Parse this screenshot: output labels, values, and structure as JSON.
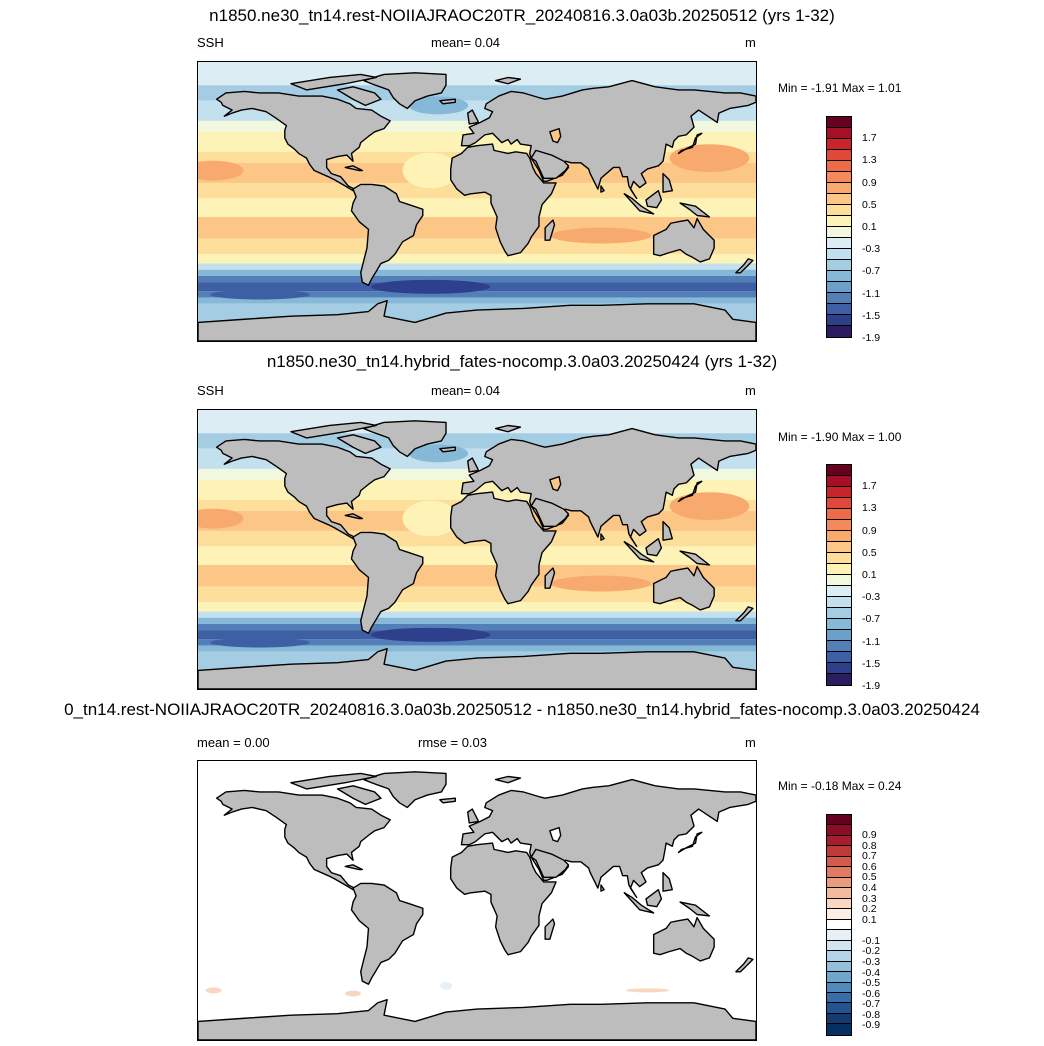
{
  "panels": [
    {
      "title": "n1850.ne30_tn14.rest-NOIIAJRAOC20TR_20240816.3.0a03b.20250512 (yrs 1-32)",
      "left_label": "SSH",
      "center_label": "mean=  0.04",
      "units": "m",
      "minmax": "Min =  -1.91 Max =   1.01",
      "colorbar": {
        "colors": [
          "#67001f",
          "#a50f28",
          "#c8252b",
          "#e0483b",
          "#ee6a4a",
          "#f48a5b",
          "#f8a96e",
          "#fbc686",
          "#fddf9b",
          "#fdf3b6",
          "#f1f8dd",
          "#dcedf3",
          "#c2e0ee",
          "#a4cde3",
          "#86b8d7",
          "#6aa0ca",
          "#537fb9",
          "#3f5fa5",
          "#2e3f8c",
          "#2c1d60"
        ],
        "labels": [
          "1.7",
          "1.3",
          "0.9",
          "0.5",
          "0.1",
          "-0.3",
          "-0.7",
          "-1.1",
          "-1.5",
          "-1.9"
        ]
      },
      "map_style": "full"
    },
    {
      "title": "n1850.ne30_tn14.hybrid_fates-nocomp.3.0a03.20250424 (yrs 1-32)",
      "left_label": "SSH",
      "center_label": "mean=  0.04",
      "units": "m",
      "minmax": "Min =  -1.90 Max =   1.00",
      "colorbar": {
        "colors": [
          "#67001f",
          "#a50f28",
          "#c8252b",
          "#e0483b",
          "#ee6a4a",
          "#f48a5b",
          "#f8a96e",
          "#fbc686",
          "#fddf9b",
          "#fdf3b6",
          "#f1f8dd",
          "#dcedf3",
          "#c2e0ee",
          "#a4cde3",
          "#86b8d7",
          "#6aa0ca",
          "#537fb9",
          "#3f5fa5",
          "#2e3f8c",
          "#2c1d60"
        ],
        "labels": [
          "1.7",
          "1.3",
          "0.9",
          "0.5",
          "0.1",
          "-0.3",
          "-0.7",
          "-1.1",
          "-1.5",
          "-1.9"
        ]
      },
      "map_style": "full"
    },
    {
      "title": "0_tn14.rest-NOIIAJRAOC20TR_20240816.3.0a03b.20250512 - n1850.ne30_tn14.hybrid_fates-nocomp.3.0a03.20250424",
      "left_label": "mean =   0.00",
      "center_label": "rmse =   0.03",
      "units": "m",
      "minmax": "Min =  -0.18 Max =   0.24",
      "colorbar": {
        "colors": [
          "#67001f",
          "#8c0d25",
          "#a81d2e",
          "#c13a3a",
          "#d35a4c",
          "#e07b62",
          "#ea9c7e",
          "#f3ba9d",
          "#f9d6bf",
          "#fdeee3",
          "#ffffff",
          "#e8f0f7",
          "#d1e4f0",
          "#b5d3e7",
          "#93bfdb",
          "#70a6cd",
          "#4f8abc",
          "#356ea8",
          "#23548f",
          "#143c73",
          "#053061"
        ],
        "labels": [
          "0.9",
          "0.8",
          "0.7",
          "0.6",
          "0.5",
          "0.4",
          "0.3",
          "0.2",
          "0.1",
          "-0.1",
          "-0.2",
          "-0.3",
          "-0.4",
          "-0.5",
          "-0.6",
          "-0.7",
          "-0.8",
          "-0.9"
        ]
      },
      "map_style": "diff"
    }
  ]
}
